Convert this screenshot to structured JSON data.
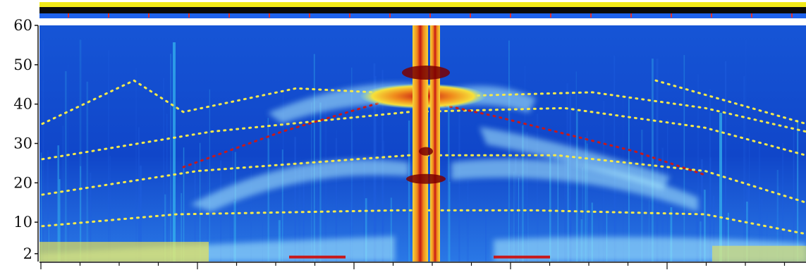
{
  "chart_data": {
    "type": "heatmap",
    "title": "",
    "xlabel": "",
    "ylabel": "",
    "yticks": [
      {
        "value": 2,
        "label": "2"
      },
      {
        "value": 10,
        "label": "10"
      },
      {
        "value": 20,
        "label": "20"
      },
      {
        "value": 30,
        "label": "30"
      },
      {
        "value": 40,
        "label": "40"
      },
      {
        "value": 50,
        "label": "50"
      },
      {
        "value": 60,
        "label": "60"
      }
    ],
    "ylim": [
      0,
      60
    ],
    "grid": false,
    "legend": "none",
    "colormap": [
      "#0a1a9e",
      "#1f5fe0",
      "#35b9f0",
      "#aef0ff",
      "#f4e94a",
      "#f28a1e",
      "#c8181a",
      "#7a0000"
    ],
    "status_bar_colors": {
      "top_stripe": "#f2ea1a",
      "middle_stripe": "#0a0a0a",
      "bottom_stripe": "#1e62ec",
      "event_marks": "#e23030"
    }
  }
}
